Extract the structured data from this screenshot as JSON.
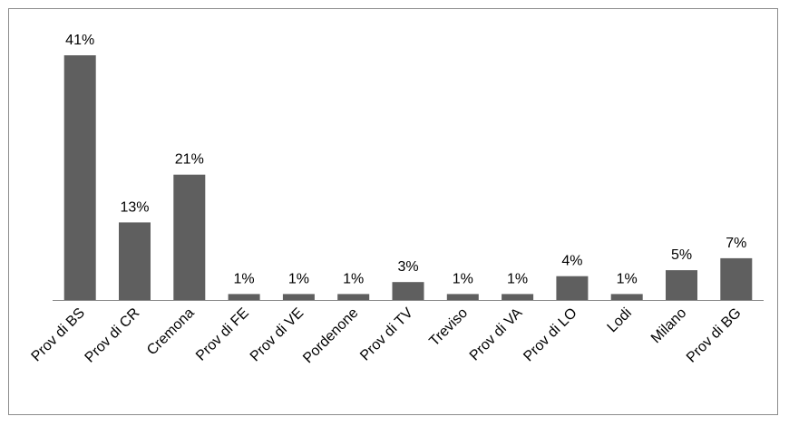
{
  "chart_data": {
    "type": "bar",
    "categories": [
      "Prov di BS",
      "Prov di CR",
      "Cremona",
      "Prov di FE",
      "Prov di VE",
      "Pordenone",
      "Prov di TV",
      "Treviso",
      "Prov di VA",
      "Prov di LO",
      "Lodi",
      "Milano",
      "Prov di BG"
    ],
    "values": [
      41,
      13,
      21,
      1,
      1,
      1,
      3,
      1,
      1,
      4,
      1,
      5,
      7
    ],
    "data_labels": [
      "41%",
      "13%",
      "21%",
      "1%",
      "1%",
      "1%",
      "3%",
      "1%",
      "1%",
      "4%",
      "1%",
      "5%",
      "7%"
    ],
    "unit": "%",
    "bar_color": "#5f5f5f",
    "axis_color": "#8c8c8c",
    "gridlines": false,
    "legend": "none",
    "ylim": [
      0,
      41
    ]
  }
}
